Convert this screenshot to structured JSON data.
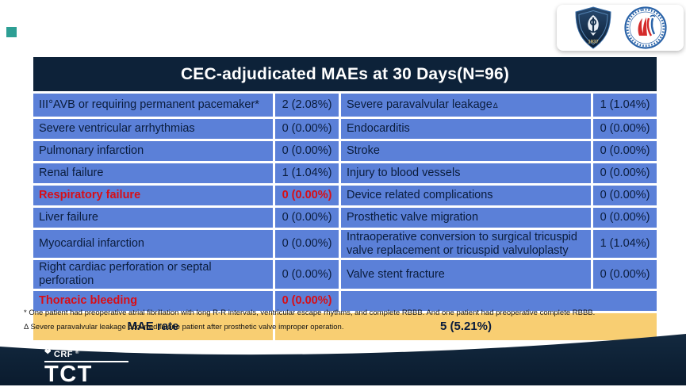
{
  "table": {
    "title": "CEC-adjudicated MAEs at 30 Days(N=96)",
    "rows": [
      {
        "c1": "III°AVB or requiring permanent pacemaker*",
        "v1": "2 (2.08%)",
        "c2": "Severe paravalvular leakage",
        "c2_sup": "Δ",
        "v2": "1 (1.04%)",
        "red": false,
        "merged": false
      },
      {
        "c1": "Severe ventricular arrhythmias",
        "v1": "0 (0.00%)",
        "c2": "Endocarditis",
        "v2": "0 (0.00%)",
        "red": false,
        "merged": false
      },
      {
        "c1": "Pulmonary infarction",
        "v1": "0 (0.00%)",
        "c2": "Stroke",
        "v2": "0 (0.00%)",
        "red": false,
        "merged": false
      },
      {
        "c1": "Renal failure",
        "v1": "1 (1.04%)",
        "c2": "Injury to blood vessels",
        "v2": "0 (0.00%)",
        "red": false,
        "merged": false
      },
      {
        "c1": "Respiratory failure",
        "v1": "0 (0.00%)",
        "c2": "Device related complications",
        "v2": "0 (0.00%)",
        "red": true,
        "merged": false
      },
      {
        "c1": "Liver failure",
        "v1": "0 (0.00%)",
        "c2": "Prosthetic valve migration",
        "v2": "0 (0.00%)",
        "red": false,
        "merged": false
      },
      {
        "c1": "Myocardial infarction",
        "v1": "0 (0.00%)",
        "c2": "Intraoperative conversion to surgical tricuspid valve replacement or tricuspid valvuloplasty",
        "v2": "1 (1.04%)",
        "red": false,
        "merged": false
      },
      {
        "c1": "Right cardiac perforation or septal perforation",
        "v1": "0 (0.00%)",
        "c2": "Valve stent fracture",
        "v2": "0 (0.00%)",
        "red": false,
        "merged": false
      },
      {
        "c1": "Thoracic bleeding",
        "v1": "0 (0.00%)",
        "c2": "",
        "v2": "",
        "red": true,
        "merged": true
      }
    ],
    "summary": {
      "label": "MAE rate",
      "value": "5 (5.21%)"
    }
  },
  "footnotes": [
    "* One patient had preoperative atrial fibrillation with long R-R intervals, ventricular escape rhythms, and complete RBBB. And one patient had preoperative complete RBBB.",
    "Δ Severe paravalvular leakage occurred in one patient after prosthetic valve improper operation."
  ],
  "logos": {
    "shield_year": "1937"
  },
  "footer": {
    "crf_label": "CRF",
    "crf_mark": "®",
    "tct_label": "TCT"
  },
  "colors": {
    "header_bg": "#0D2239",
    "cell_bg": "#5B80D8",
    "summary_bg": "#F8CE72",
    "red_text": "#D80E16",
    "cell_text": "#0A1C3C",
    "footer_bg": "#0E2439",
    "accent": "#2D9F94"
  }
}
